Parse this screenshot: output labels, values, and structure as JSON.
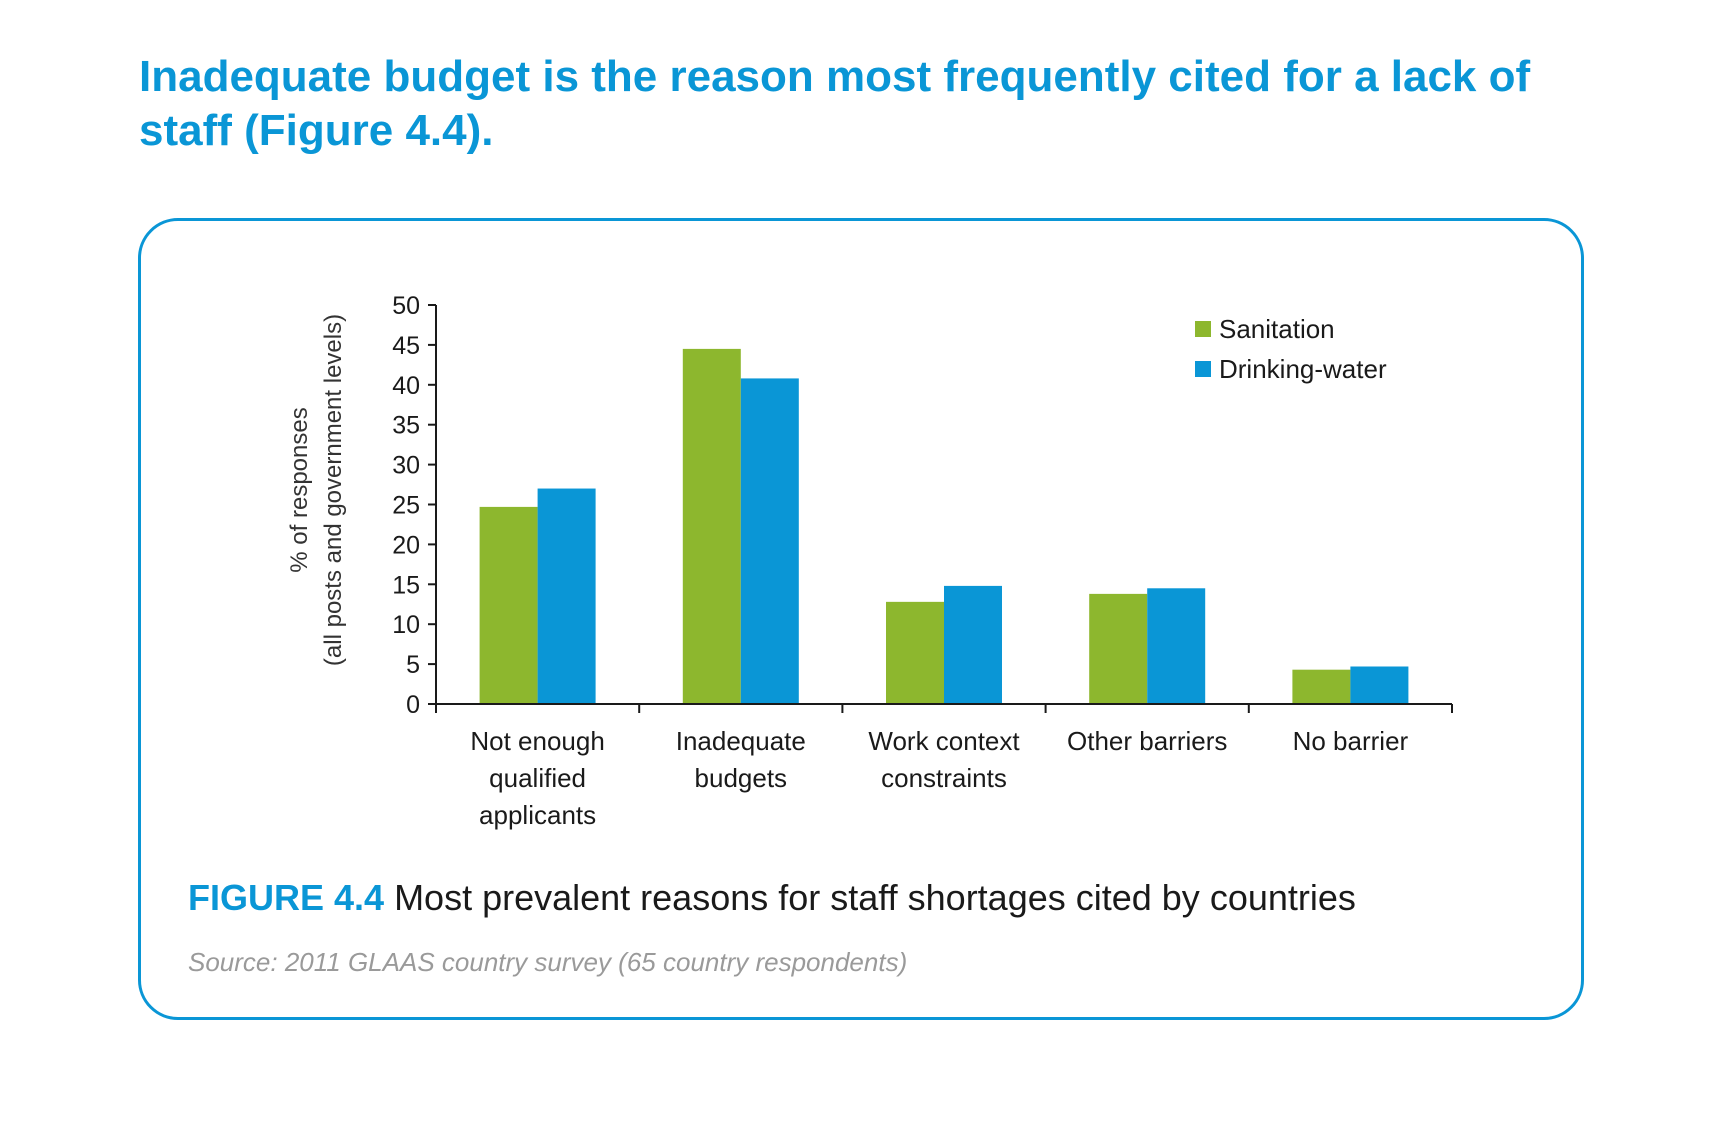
{
  "headline": "Inadequate budget is the reason most frequently cited for a lack of staff (Figure 4.4).",
  "figure": {
    "label": "FIGURE 4.4",
    "caption": " Most prevalent reasons for staff shortages cited by countries",
    "source": "Source: 2011 GLAAS country survey (65 country respondents)"
  },
  "colors": {
    "accent": "#0a96d6",
    "sanitation": "#8db72e",
    "drinking_water": "#0a96d6"
  },
  "chart_data": {
    "type": "bar",
    "title": "",
    "xlabel": "",
    "ylabel": [
      "% of responses",
      "(all posts and government levels)"
    ],
    "ylim": [
      0,
      50
    ],
    "yticks": [
      0,
      5,
      10,
      15,
      20,
      25,
      30,
      35,
      40,
      45,
      50
    ],
    "grid": false,
    "legend_position": "top-right",
    "categories": [
      [
        "Not enough",
        "qualified",
        "applicants"
      ],
      [
        "Inadequate",
        "budgets"
      ],
      [
        "Work context",
        "constraints"
      ],
      [
        "Other barriers"
      ],
      [
        "No barrier"
      ]
    ],
    "series": [
      {
        "name": "Sanitation",
        "color": "#8db72e",
        "values": [
          24.7,
          44.5,
          12.8,
          13.8,
          4.3
        ]
      },
      {
        "name": "Drinking-water",
        "color": "#0a96d6",
        "values": [
          27.0,
          40.8,
          14.8,
          14.5,
          4.7
        ]
      }
    ]
  }
}
